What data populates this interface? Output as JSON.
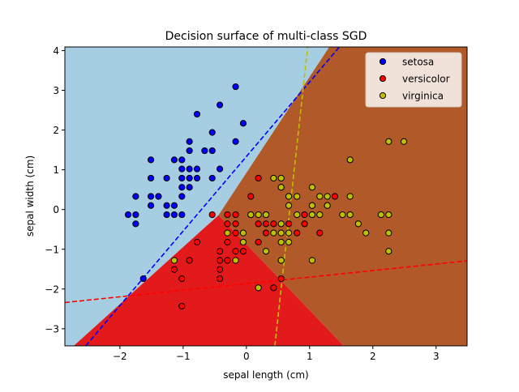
{
  "chart_data": {
    "type": "scatter",
    "title": "Decision surface of multi-class SGD",
    "xlabel": "sepal length (cm)",
    "ylabel": "sepal width (cm)",
    "xlim": [
      -2.87,
      3.49
    ],
    "ylim": [
      -3.43,
      4.09
    ],
    "xticks": [
      -2,
      -1,
      0,
      1,
      2,
      3
    ],
    "yticks": [
      -3,
      -2,
      -1,
      0,
      1,
      2,
      3,
      4
    ],
    "grid": false,
    "legend_placement": "top-right",
    "regions": [
      {
        "class": "setosa",
        "color": "#a6cee3",
        "polygon": [
          [
            -2.87,
            4.09
          ],
          [
            1.31,
            4.09
          ],
          [
            -0.44,
            -0.14
          ],
          [
            -2.73,
            -3.43
          ],
          [
            -2.87,
            -3.43
          ]
        ]
      },
      {
        "class": "versicolor",
        "color": "#e31a1c",
        "polygon": [
          [
            -0.44,
            -0.14
          ],
          [
            1.54,
            -3.43
          ],
          [
            -2.73,
            -3.43
          ]
        ]
      },
      {
        "class": "virginica",
        "color": "#b15928",
        "polygon": [
          [
            1.31,
            4.09
          ],
          [
            3.49,
            4.09
          ],
          [
            3.49,
            -3.43
          ],
          [
            1.54,
            -3.43
          ],
          [
            -0.44,
            -0.14
          ]
        ]
      }
    ],
    "hyperplanes": [
      {
        "class": "setosa",
        "color": "#0000ff",
        "points": [
          [
            -2.54,
            -3.43
          ],
          [
            1.47,
            4.09
          ]
        ]
      },
      {
        "class": "versicolor",
        "color": "#ff0000",
        "points": [
          [
            -2.87,
            -2.34
          ],
          [
            3.49,
            -1.29
          ]
        ]
      },
      {
        "class": "virginica",
        "color": "#bfbf00",
        "points": [
          [
            0.45,
            -3.43
          ],
          [
            0.97,
            4.09
          ]
        ]
      }
    ],
    "series": [
      {
        "name": "setosa",
        "color": "#0000ff",
        "points": [
          [
            -0.9,
            1.02
          ],
          [
            -1.14,
            -0.13
          ],
          [
            -1.39,
            0.33
          ],
          [
            -1.51,
            0.1
          ],
          [
            -1.02,
            1.25
          ],
          [
            -0.54,
            1.94
          ],
          [
            -1.51,
            0.79
          ],
          [
            -1.02,
            0.79
          ],
          [
            -1.75,
            -0.36
          ],
          [
            -1.14,
            0.1
          ],
          [
            -0.54,
            1.48
          ],
          [
            -1.26,
            0.79
          ],
          [
            -1.26,
            -0.13
          ],
          [
            -1.87,
            -0.13
          ],
          [
            -0.05,
            2.17
          ],
          [
            -0.17,
            3.09
          ],
          [
            -0.17,
            1.71
          ],
          [
            -0.9,
            1.71
          ],
          [
            -0.54,
            0.79
          ],
          [
            -0.9,
            1.48
          ],
          [
            -1.51,
            1.25
          ],
          [
            -0.9,
            0.56
          ],
          [
            -1.02,
            -0.13
          ],
          [
            -0.78,
            1.02
          ],
          [
            -0.78,
            0.79
          ],
          [
            -1.26,
            0.1
          ],
          [
            -0.78,
            2.4
          ],
          [
            -0.42,
            2.63
          ],
          [
            -1.02,
            0.33
          ],
          [
            -0.42,
            1.02
          ],
          [
            -1.14,
            1.25
          ],
          [
            -1.75,
            -0.13
          ],
          [
            -0.9,
            0.79
          ],
          [
            -1.02,
            1.02
          ],
          [
            -1.63,
            -1.74
          ],
          [
            -1.75,
            0.33
          ],
          [
            -1.51,
            0.33
          ],
          [
            -0.66,
            1.48
          ],
          [
            -1.02,
            0.56
          ]
        ]
      },
      {
        "name": "versicolor",
        "color": "#ff0000",
        "points": [
          [
            1.4,
            0.33
          ],
          [
            0.67,
            0.33
          ],
          [
            1.28,
            0.1
          ],
          [
            -0.42,
            -1.74
          ],
          [
            0.8,
            -0.59
          ],
          [
            -0.17,
            -0.59
          ],
          [
            0.55,
            0.56
          ],
          [
            -1.14,
            -1.51
          ],
          [
            0.92,
            -0.36
          ],
          [
            -0.78,
            -0.82
          ],
          [
            -1.02,
            -2.43
          ],
          [
            0.07,
            -0.13
          ],
          [
            0.19,
            -1.97
          ],
          [
            0.31,
            -0.36
          ],
          [
            -0.3,
            -0.36
          ],
          [
            1.04,
            0.1
          ],
          [
            -0.3,
            -0.13
          ],
          [
            -0.05,
            -0.82
          ],
          [
            0.43,
            -1.97
          ],
          [
            -0.3,
            -1.28
          ],
          [
            0.07,
            0.33
          ],
          [
            0.31,
            -0.59
          ],
          [
            0.55,
            -1.28
          ],
          [
            0.67,
            -0.36
          ],
          [
            0.92,
            -0.13
          ],
          [
            1.16,
            -0.59
          ],
          [
            1.04,
            -0.13
          ],
          [
            0.19,
            -0.36
          ],
          [
            -0.17,
            -1.05
          ],
          [
            -0.42,
            -1.51
          ],
          [
            0.19,
            -0.82
          ],
          [
            -0.54,
            -0.13
          ],
          [
            0.19,
            0.79
          ],
          [
            0.55,
            -1.74
          ],
          [
            -0.42,
            -1.28
          ],
          [
            -0.42,
            -1.05
          ],
          [
            0.31,
            -0.13
          ],
          [
            -0.05,
            -1.05
          ],
          [
            -1.02,
            -1.74
          ],
          [
            -0.3,
            -0.82
          ],
          [
            -0.17,
            -0.13
          ],
          [
            -0.17,
            -0.36
          ],
          [
            0.43,
            -0.36
          ],
          [
            -0.9,
            -1.28
          ]
        ]
      },
      {
        "name": "virginica",
        "color": "#bfbf00",
        "points": [
          [
            0.55,
            0.56
          ],
          [
            -0.05,
            -0.82
          ],
          [
            1.52,
            -0.13
          ],
          [
            0.55,
            -0.36
          ],
          [
            0.8,
            -0.13
          ],
          [
            2.13,
            -0.13
          ],
          [
            -1.14,
            -1.28
          ],
          [
            1.77,
            -0.36
          ],
          [
            1.04,
            -1.28
          ],
          [
            1.64,
            1.25
          ],
          [
            0.8,
            0.33
          ],
          [
            0.67,
            -0.82
          ],
          [
            1.16,
            -0.13
          ],
          [
            -0.17,
            -1.28
          ],
          [
            -0.05,
            -0.59
          ],
          [
            0.67,
            0.33
          ],
          [
            2.25,
            1.71
          ],
          [
            2.25,
            -1.05
          ],
          [
            0.19,
            -1.97
          ],
          [
            1.28,
            0.33
          ],
          [
            -0.3,
            -0.59
          ],
          [
            2.25,
            -0.59
          ],
          [
            0.55,
            -0.82
          ],
          [
            1.04,
            0.56
          ],
          [
            1.64,
            0.33
          ],
          [
            0.43,
            -0.59
          ],
          [
            0.31,
            -0.13
          ],
          [
            0.67,
            -0.59
          ],
          [
            1.64,
            -0.13
          ],
          [
            1.89,
            -0.59
          ],
          [
            2.49,
            1.71
          ],
          [
            0.55,
            -0.59
          ],
          [
            0.31,
            -1.05
          ],
          [
            2.25,
            -0.13
          ],
          [
            0.55,
            0.79
          ],
          [
            0.67,
            0.1
          ],
          [
            0.19,
            -0.13
          ],
          [
            1.28,
            0.1
          ],
          [
            1.04,
            0.1
          ],
          [
            1.16,
            0.33
          ],
          [
            1.04,
            -0.13
          ],
          [
            0.55,
            -1.28
          ],
          [
            0.43,
            0.79
          ],
          [
            0.07,
            -0.13
          ]
        ]
      }
    ]
  }
}
